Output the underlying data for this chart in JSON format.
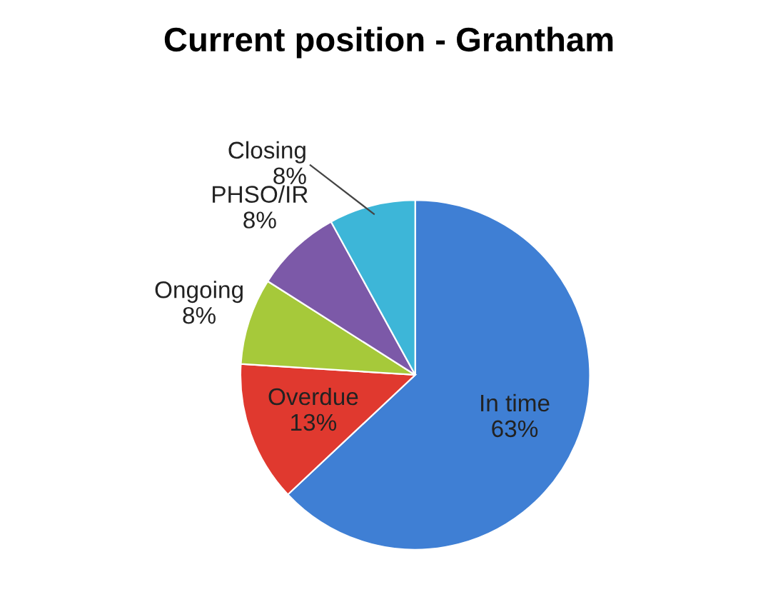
{
  "chart_data": {
    "type": "pie",
    "title": "Current position - Grantham",
    "categories": [
      "In time",
      "Overdue",
      "Ongoing",
      "PHSO/IR",
      "Closing"
    ],
    "values": [
      63,
      13,
      8,
      8,
      8
    ],
    "value_labels": [
      "63%",
      "13%",
      "8%",
      "8%",
      "8%"
    ],
    "colors": [
      "#3f7fd4",
      "#e0392f",
      "#a6c93a",
      "#7c59a8",
      "#3db6d8"
    ],
    "legend": false
  }
}
